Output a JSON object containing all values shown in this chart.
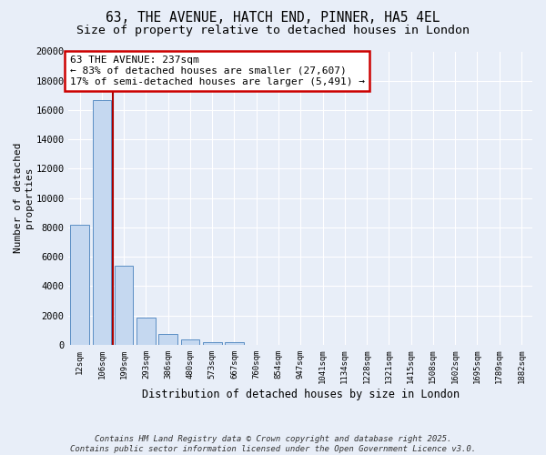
{
  "title": "63, THE AVENUE, HATCH END, PINNER, HA5 4EL",
  "subtitle": "Size of property relative to detached houses in London",
  "xlabel": "Distribution of detached houses by size in London",
  "ylabel": "Number of detached\nproperties",
  "bar_values": [
    8200,
    16700,
    5400,
    1850,
    750,
    350,
    200,
    180,
    0,
    0,
    0,
    0,
    0,
    0,
    0,
    0,
    0,
    0,
    0,
    0,
    0
  ],
  "bar_labels": [
    "12sqm",
    "106sqm",
    "199sqm",
    "293sqm",
    "386sqm",
    "480sqm",
    "573sqm",
    "667sqm",
    "760sqm",
    "854sqm",
    "947sqm",
    "1041sqm",
    "1134sqm",
    "1228sqm",
    "1321sqm",
    "1415sqm",
    "1508sqm",
    "1602sqm",
    "1695sqm",
    "1789sqm",
    "1882sqm"
  ],
  "bar_color": "#c5d8f0",
  "bar_edge_color": "#5b8ec4",
  "background_color": "#e8eef8",
  "grid_color": "#ffffff",
  "vline_x": 1.5,
  "vline_color": "#aa0000",
  "annotation_text": "63 THE AVENUE: 237sqm\n← 83% of detached houses are smaller (27,607)\n17% of semi-detached houses are larger (5,491) →",
  "annotation_box_color": "#ffffff",
  "annotation_box_edge": "#cc0000",
  "yticks": [
    0,
    2000,
    4000,
    6000,
    8000,
    10000,
    12000,
    14000,
    16000,
    18000,
    20000
  ],
  "footer_text": "Contains HM Land Registry data © Crown copyright and database right 2025.\nContains public sector information licensed under the Open Government Licence v3.0.",
  "title_fontsize": 10.5,
  "subtitle_fontsize": 9.5,
  "ann_fontsize": 8.0
}
